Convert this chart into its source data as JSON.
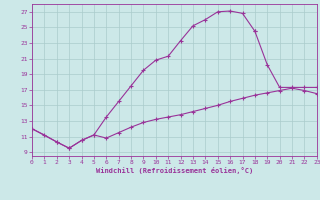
{
  "background_color": "#cce8e8",
  "grid_color": "#aacccc",
  "line_color": "#993399",
  "xlabel": "Windchill (Refroidissement éolien,°C)",
  "xlim": [
    0,
    23
  ],
  "ylim": [
    8.5,
    28
  ],
  "yticks": [
    9,
    11,
    13,
    15,
    17,
    19,
    21,
    23,
    25,
    27
  ],
  "xticks": [
    0,
    1,
    2,
    3,
    4,
    5,
    6,
    7,
    8,
    9,
    10,
    11,
    12,
    13,
    14,
    15,
    16,
    17,
    18,
    19,
    20,
    21,
    22,
    23
  ],
  "curve1_x": [
    0,
    1,
    2,
    3,
    4,
    5,
    6,
    7,
    8,
    9,
    10,
    11,
    12,
    13,
    14,
    15,
    16,
    17,
    18
  ],
  "curve1_y": [
    12.0,
    11.2,
    10.3,
    9.5,
    10.5,
    11.2,
    13.5,
    15.5,
    17.5,
    19.5,
    20.8,
    21.3,
    23.3,
    25.2,
    26.0,
    27.0,
    27.1,
    26.8,
    24.5
  ],
  "curve2_x": [
    18,
    19,
    20,
    21,
    22,
    23
  ],
  "curve2_y": [
    24.5,
    20.2,
    17.3,
    17.3,
    17.3,
    17.3
  ],
  "curve3_x": [
    0,
    2,
    3,
    4,
    5,
    6,
    7,
    8,
    9,
    10,
    11,
    12,
    13,
    14,
    15,
    16,
    17,
    18,
    19,
    20,
    21,
    22,
    23
  ],
  "curve3_y": [
    12.0,
    10.3,
    9.5,
    10.5,
    11.2,
    10.8,
    11.5,
    12.2,
    12.8,
    13.2,
    13.5,
    13.8,
    14.2,
    14.6,
    15.0,
    15.5,
    15.9,
    16.3,
    16.6,
    16.9,
    17.2,
    16.9,
    16.5
  ]
}
